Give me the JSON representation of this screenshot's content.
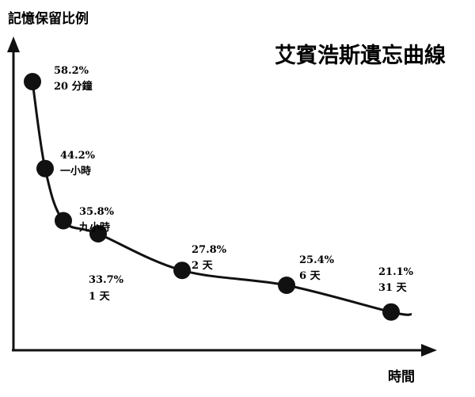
{
  "chart_data": {
    "type": "line",
    "title": "艾賓浩斯遺忘曲線",
    "ylabel": "記憶保留比例",
    "xlabel": "時間",
    "grid": false,
    "legend": "none",
    "line_color": "#111111",
    "marker_color": "#111111",
    "points": [
      {
        "label": "20 分鐘",
        "value": 58.2,
        "value_text": "58.2%"
      },
      {
        "label": "一小時",
        "value": 44.2,
        "value_text": "44.2%"
      },
      {
        "label": "九小時",
        "value": 35.8,
        "value_text": "35.8%"
      },
      {
        "label": "1 天",
        "value": 33.7,
        "value_text": "33.7%"
      },
      {
        "label": "2 天",
        "value": 27.8,
        "value_text": "27.8%"
      },
      {
        "label": "6 天",
        "value": 25.4,
        "value_text": "25.4%"
      },
      {
        "label": "31 天",
        "value": 21.1,
        "value_text": "21.1%"
      }
    ]
  }
}
